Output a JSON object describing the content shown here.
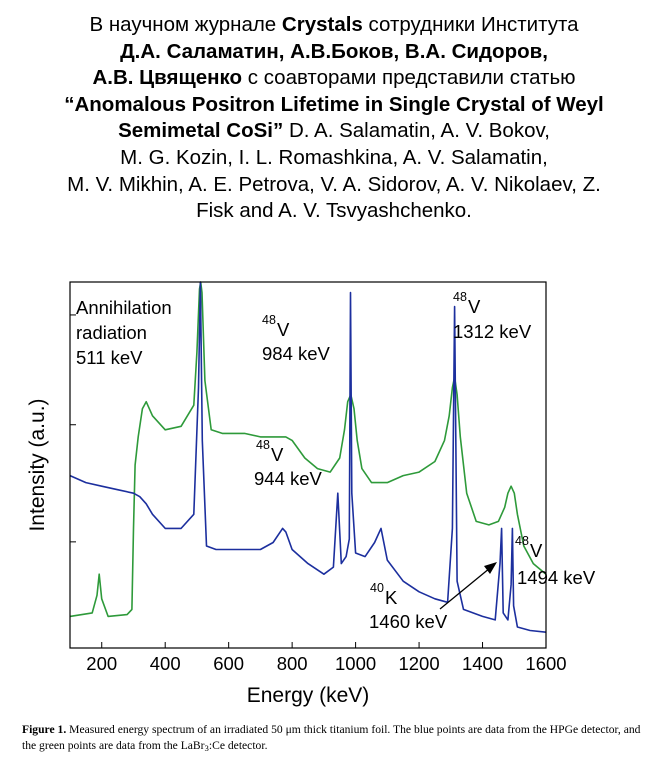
{
  "intro": {
    "l1_a": "В научном журнале",
    "l1_b": "Crystals",
    "l1_c": "сотрудники Института",
    "l2": "Д.А. Саламатин, А.В.Боков, В.А. Сидоров,",
    "l3_a": "А.В. Цвященко",
    "l3_b": "с соавторами представили статью",
    "l4": "“Anomalous Positron Lifetime in Single Crystal of Weyl",
    "l5_a": "Semimetal CoSi”",
    "l5_b": "D. A. Salamatin, A. V. Bokov,",
    "l6": "M. G. Kozin, I. L. Romashkina, A. V. Salamatin,",
    "l7": "M. V. Mikhin, A. E. Petrova, V. A. Sidorov, A. V. Nikolaev, Z.",
    "l8": "Fisk  and A. V. Tsvyashchenko."
  },
  "chart_data": {
    "type": "line",
    "xlabel": "Energy (keV)",
    "ylabel": "Intensity (a.u.)",
    "xlim": [
      100,
      1600
    ],
    "ylim": [
      0,
      1
    ],
    "yscale": "log (arbitrary units, no tick labels)",
    "xticks": [
      200,
      400,
      600,
      800,
      1000,
      1200,
      1400,
      1600
    ],
    "series": [
      {
        "name": "LaBr3:Ce detector",
        "color": "#2e9a3a",
        "x": [
          100,
          170,
          185,
          192,
          200,
          220,
          280,
          295,
          300,
          305,
          315,
          328,
          340,
          360,
          400,
          450,
          490,
          500,
          508,
          512,
          516,
          525,
          545,
          580,
          650,
          700,
          750,
          780,
          800,
          840,
          880,
          920,
          950,
          965,
          975,
          985,
          995,
          1005,
          1020,
          1050,
          1100,
          1150,
          1200,
          1250,
          1280,
          1295,
          1305,
          1312,
          1320,
          1330,
          1350,
          1380,
          1420,
          1450,
          1470,
          1480,
          1490,
          1500,
          1510,
          1530,
          1560,
          1600
        ],
        "y": [
          0.05,
          0.06,
          0.11,
          0.17,
          0.1,
          0.05,
          0.055,
          0.07,
          0.3,
          0.48,
          0.56,
          0.64,
          0.66,
          0.62,
          0.58,
          0.59,
          0.65,
          0.8,
          0.98,
          1.0,
          0.97,
          0.72,
          0.58,
          0.57,
          0.57,
          0.56,
          0.56,
          0.56,
          0.55,
          0.5,
          0.47,
          0.46,
          0.5,
          0.58,
          0.66,
          0.68,
          0.64,
          0.55,
          0.47,
          0.43,
          0.43,
          0.45,
          0.46,
          0.49,
          0.55,
          0.62,
          0.7,
          0.73,
          0.68,
          0.56,
          0.4,
          0.32,
          0.31,
          0.32,
          0.36,
          0.4,
          0.42,
          0.4,
          0.34,
          0.25,
          0.2,
          0.17
        ]
      },
      {
        "name": "HPGe detector",
        "color": "#1c2f9e",
        "x": [
          100,
          150,
          200,
          250,
          300,
          320,
          340,
          360,
          400,
          450,
          490,
          505,
          511,
          517,
          530,
          560,
          600,
          650,
          700,
          740,
          770,
          780,
          800,
          850,
          900,
          930,
          944,
          955,
          970,
          980,
          984,
          988,
          1000,
          1030,
          1060,
          1080,
          1100,
          1150,
          1200,
          1250,
          1290,
          1305,
          1312,
          1320,
          1340,
          1400,
          1440,
          1455,
          1460,
          1465,
          1480,
          1490,
          1494,
          1498,
          1510,
          1550,
          1600
        ],
        "y": [
          0.45,
          0.43,
          0.42,
          0.41,
          0.4,
          0.39,
          0.37,
          0.34,
          0.3,
          0.3,
          0.34,
          0.7,
          1.0,
          0.55,
          0.25,
          0.24,
          0.24,
          0.24,
          0.24,
          0.26,
          0.3,
          0.29,
          0.24,
          0.2,
          0.17,
          0.19,
          0.4,
          0.2,
          0.22,
          0.27,
          0.97,
          0.4,
          0.23,
          0.22,
          0.26,
          0.3,
          0.21,
          0.15,
          0.12,
          0.1,
          0.09,
          0.3,
          0.93,
          0.15,
          0.07,
          0.05,
          0.04,
          0.2,
          0.3,
          0.06,
          0.04,
          0.14,
          0.3,
          0.08,
          0.02,
          0.01,
          0.005
        ]
      }
    ],
    "annotations": [
      {
        "text": "Annihilation radiation 511 keV",
        "x": 511
      },
      {
        "isotope_mass": "48",
        "element": "V",
        "energy": "984 keV",
        "x": 984
      },
      {
        "isotope_mass": "48",
        "element": "V",
        "energy": "1312 keV",
        "x": 1312
      },
      {
        "isotope_mass": "48",
        "element": "V",
        "energy": "944 keV",
        "x": 944
      },
      {
        "isotope_mass": "48",
        "element": "V",
        "energy": "1494 keV",
        "x": 1494
      },
      {
        "isotope_mass": "40",
        "element": "K",
        "energy": "1460 keV",
        "x": 1460
      }
    ]
  },
  "labels": {
    "annih_1": "Annihilation",
    "annih_2": "radiation",
    "annih_3": "511 keV",
    "v984_mass": "48",
    "v984_el": "V",
    "v984_energy": "984 keV",
    "v1312_mass": "48",
    "v1312_el": "V",
    "v1312_energy": "1312 keV",
    "v944_mass": "48",
    "v944_el": "V",
    "v944_energy": "944 keV",
    "v1494_mass": "48",
    "v1494_el": "V",
    "v1494_energy": "1494 keV",
    "k1460_mass": "40",
    "k1460_el": "K",
    "k1460_energy": "1460 keV"
  },
  "caption": {
    "figure": "Figure 1.",
    "text_a": "Measured energy spectrum of an irradiated 50 μm thick titanium foil. The blue points are data from the HPGe detector, and the green points are data from the LaBr",
    "text_sub": "3",
    "text_b": ":Ce detector."
  }
}
